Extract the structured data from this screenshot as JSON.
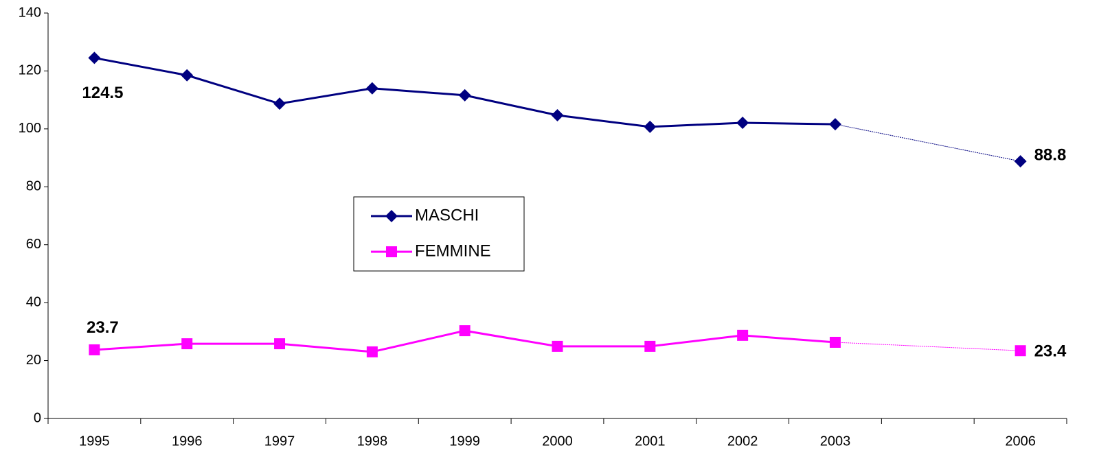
{
  "chart_data": {
    "type": "line",
    "categories": [
      "1995",
      "1996",
      "1997",
      "1998",
      "1999",
      "2000",
      "2001",
      "2002",
      "2003",
      null,
      "2006"
    ],
    "series": [
      {
        "name": "MASCHI",
        "color": "#000080",
        "marker": "diamond",
        "values": [
          124.5,
          118.5,
          108.7,
          114.0,
          111.6,
          104.7,
          100.7,
          102.1,
          101.6,
          null,
          88.8
        ]
      },
      {
        "name": "FEMMINE",
        "color": "#ff00ff",
        "marker": "square",
        "values": [
          23.7,
          25.8,
          25.8,
          23.0,
          30.3,
          24.9,
          24.9,
          28.7,
          26.3,
          null,
          23.4
        ]
      }
    ],
    "ylim": [
      0,
      140
    ],
    "yticks": [
      0,
      20,
      40,
      60,
      80,
      100,
      120,
      140
    ],
    "grid": false
  }
}
